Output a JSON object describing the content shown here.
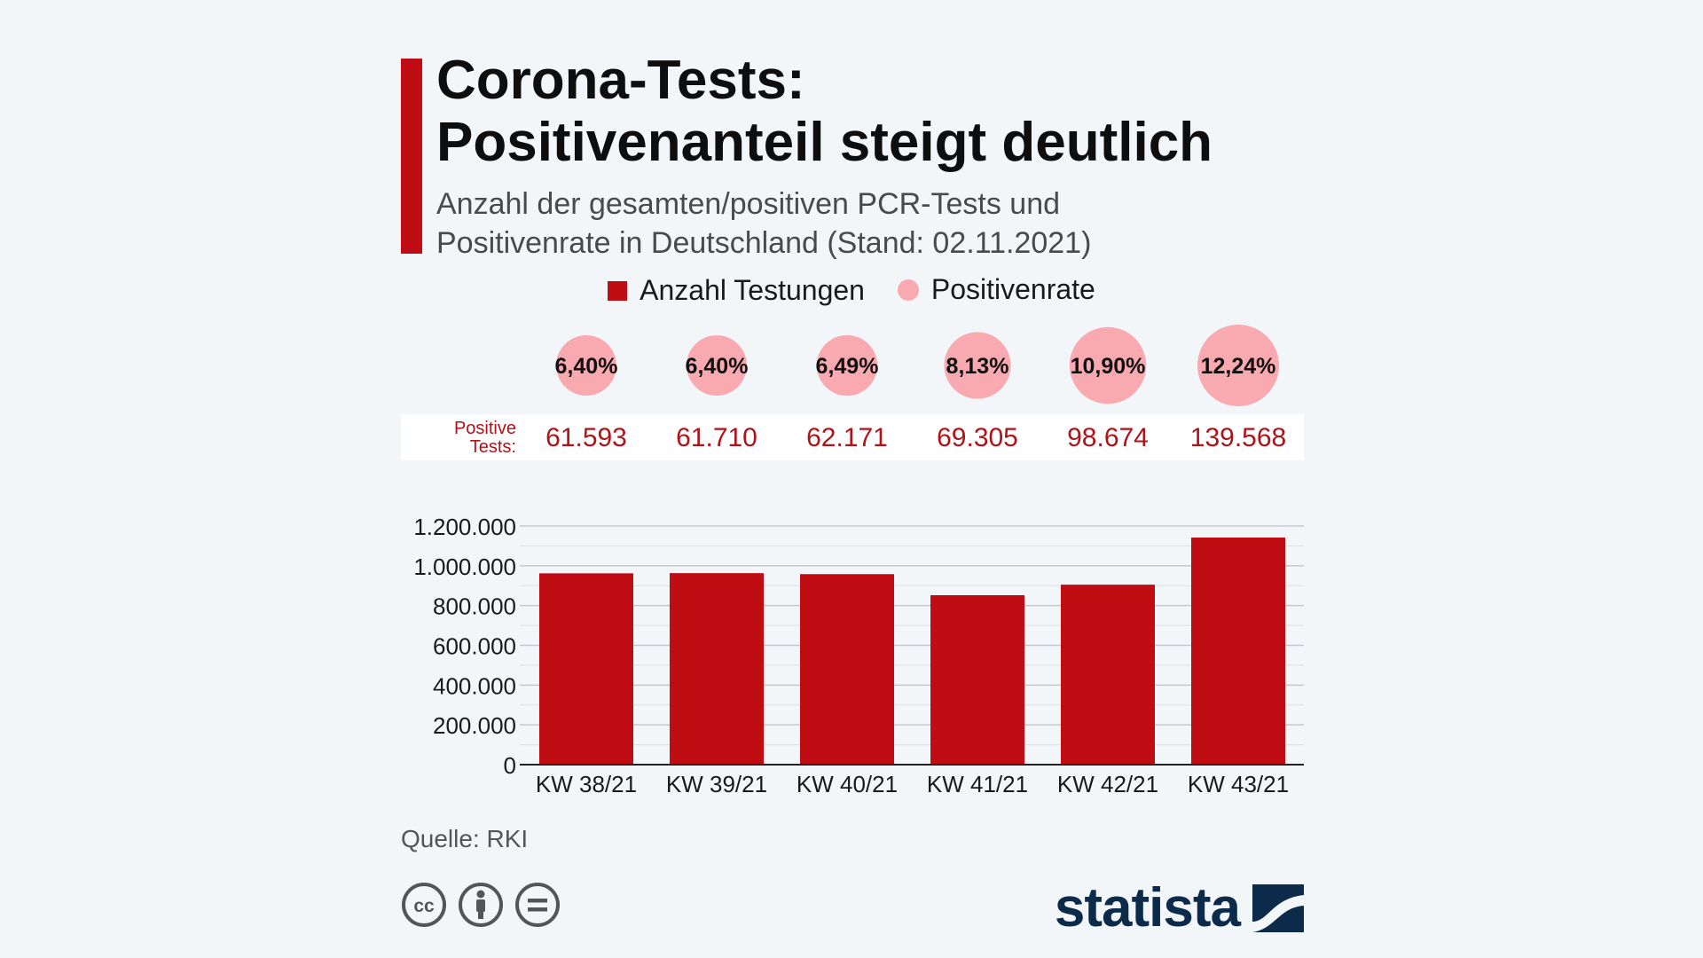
{
  "header": {
    "title_line1": "Corona-Tests:",
    "title_line2": "Positivenanteil steigt deutlich",
    "subtitle_line1": "Anzahl der gesamten/positiven PCR-Tests und",
    "subtitle_line2": "Positivenrate in Deutschland (Stand: 02.11.2021)"
  },
  "legend": {
    "tests_label": "Anzahl Testungen",
    "rate_label": "Positivenrate"
  },
  "positive_row_label_line1": "Positive",
  "positive_row_label_line2": "Tests:",
  "colors": {
    "bar": "#c00d13",
    "bubble": "#f9a9b0",
    "positive_text": "#b01218",
    "accent": "#c00d13",
    "brand": "#0c2b4a"
  },
  "chart_data": {
    "type": "bar",
    "title": "Corona-Tests: Positivenanteil steigt deutlich",
    "categories": [
      "KW 38/21",
      "KW 39/21",
      "KW 40/21",
      "KW 41/21",
      "KW 42/21",
      "KW 43/21"
    ],
    "series": [
      {
        "name": "Anzahl Testungen",
        "values": [
          962000,
          963000,
          958000,
          852000,
          905000,
          1142000
        ]
      }
    ],
    "positive_tests": [
      "61.593",
      "61.710",
      "62.171",
      "69.305",
      "98.674",
      "139.568"
    ],
    "positivenrate_labels": [
      "6,40%",
      "6,40%",
      "6,49%",
      "8,13%",
      "10,90%",
      "12,24%"
    ],
    "positivenrate_values": [
      6.4,
      6.4,
      6.49,
      8.13,
      10.9,
      12.24
    ],
    "yticks": [
      0,
      200000,
      400000,
      600000,
      800000,
      1000000,
      1200000
    ],
    "ytick_labels": [
      "0",
      "200.000",
      "400.000",
      "600.000",
      "800.000",
      "1.000.000",
      "1.200.000"
    ],
    "ylim": [
      0,
      1200000
    ],
    "xlabel": "",
    "ylabel": "",
    "grid": true
  },
  "footer": {
    "source": "Quelle: RKI",
    "brand": "statista",
    "license_icons": [
      "cc-icon",
      "by-attribution-icon",
      "no-derivatives-icon"
    ]
  }
}
